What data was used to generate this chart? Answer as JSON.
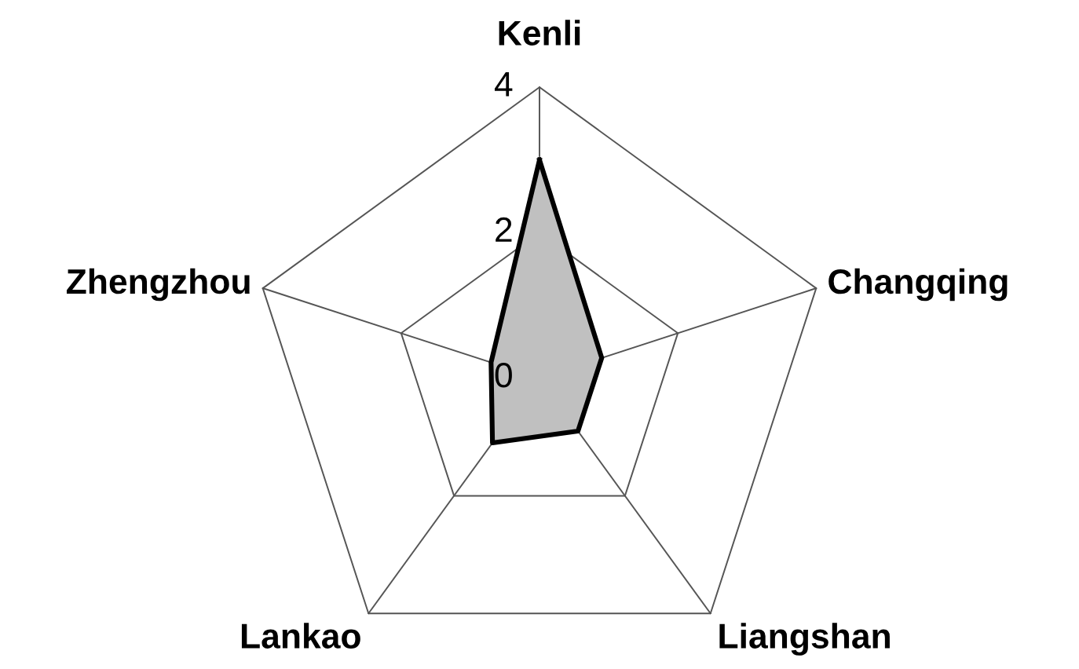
{
  "chart_data": {
    "type": "radar",
    "categories": [
      "Kenli",
      "Changqing",
      "Liangshan",
      "Lankao",
      "Zhengzhou"
    ],
    "series": [
      {
        "color": "#c0c0c0",
        "values": [
          3.0,
          0.9,
          0.9,
          1.1,
          0.7
        ]
      }
    ],
    "ylim": [
      0,
      4
    ],
    "yticks": [
      0,
      2,
      4
    ],
    "grid": true,
    "marker": "none",
    "line_style": "solid"
  }
}
